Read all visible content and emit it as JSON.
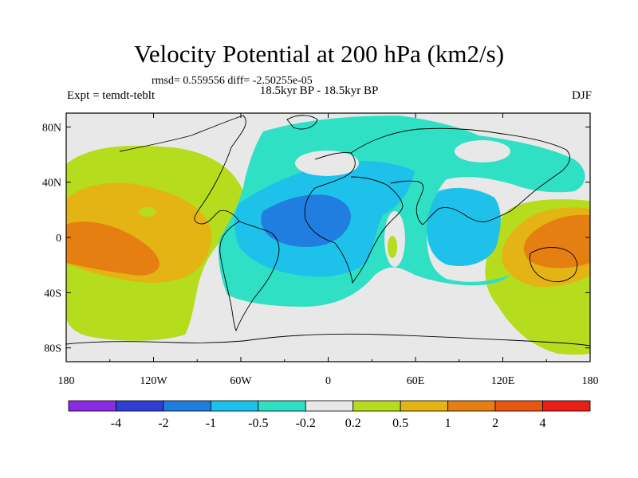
{
  "title": "Velocity Potential at 200 hPa (km2/s)",
  "stats": "rmsd= 0.559556 diff= -2.50255e-05",
  "subtitle": "18.5kyr BP - 18.5kyr BP",
  "experiment": "Expt = temdt-teblt",
  "season": "DJF",
  "map": {
    "projection": "equidistant-cylindrical",
    "lon_range": [
      -180,
      180
    ],
    "lat_range": [
      -90,
      90
    ],
    "lon_ticks": [
      "180",
      "120W",
      "60W",
      "0",
      "60E",
      "120E",
      "180"
    ],
    "lat_ticks": [
      "80N",
      "40N",
      "0",
      "40S",
      "80S"
    ],
    "background_color": "#e8e8e8"
  },
  "colorbar": {
    "colors": [
      "#8a2be2",
      "#2f3fd6",
      "#1f7ee0",
      "#1ec1e9",
      "#2fe0c4",
      "#e8e8e8",
      "#b6dc1e",
      "#e3b414",
      "#e57f11",
      "#e95612",
      "#e81f14"
    ],
    "labels": [
      "-4",
      "-2",
      "-1",
      "-0.5",
      "-0.2",
      "0.2",
      "0.5",
      "1",
      "2",
      "4"
    ]
  },
  "chart_data": {
    "type": "contour-map",
    "variable": "Velocity Potential at 200 hPa",
    "units": "km2/s",
    "levels": [
      -4,
      -2,
      -1,
      -0.5,
      -0.2,
      0.2,
      0.5,
      1,
      2,
      4
    ],
    "features": [
      {
        "region": "central-eastern Pacific",
        "center_lon": -155,
        "center_lat": -5,
        "value_range": [
          1,
          2
        ],
        "sign": "positive"
      },
      {
        "region": "western Pacific / Maritime Continent",
        "center_lon": 160,
        "center_lat": 0,
        "value_range": [
          1,
          2
        ],
        "sign": "positive"
      },
      {
        "region": "tropical Atlantic / South America / Africa",
        "center_lon": -20,
        "center_lat": 10,
        "value_range": [
          -1,
          -0.5
        ],
        "sign": "negative"
      },
      {
        "region": "Indian Ocean",
        "center_lon": 90,
        "center_lat": 0,
        "value_range": [
          -0.5,
          -0.2
        ],
        "sign": "negative"
      },
      {
        "region": "Arctic / Eurasia",
        "center_lon": 40,
        "center_lat": 60,
        "value_range": [
          -0.5,
          -0.2
        ],
        "sign": "negative"
      }
    ]
  }
}
